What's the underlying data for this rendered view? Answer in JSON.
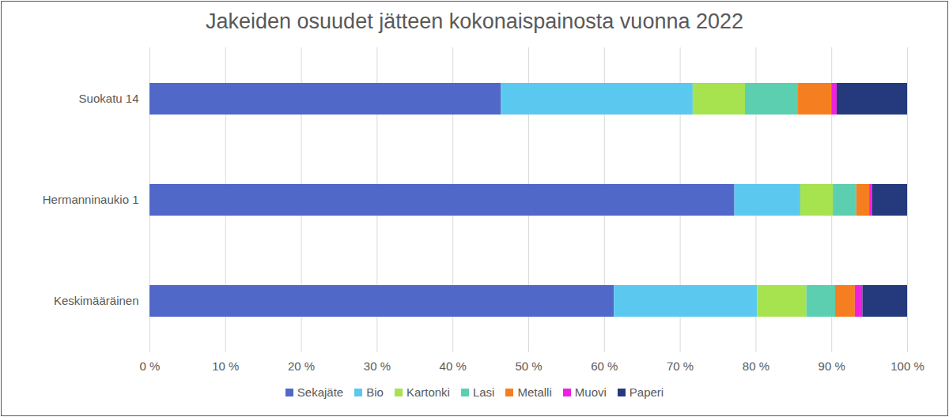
{
  "chart_data": {
    "type": "bar",
    "orientation": "horizontal",
    "stacked": true,
    "title": "Jakeiden osuudet jätteen kokonaispainosta vuonna 2022",
    "categories": [
      "Suokatu 14",
      "Hermanninaukio 1",
      "Keskimääräinen"
    ],
    "series": [
      {
        "name": "Sekajäte",
        "color": "#5068c8",
        "values": [
          46.4,
          77.2,
          61.3
        ]
      },
      {
        "name": "Bio",
        "color": "#5bc8f0",
        "values": [
          25.3,
          8.7,
          18.9
        ]
      },
      {
        "name": "Kartonki",
        "color": "#a6e34e",
        "values": [
          6.9,
          4.3,
          6.5
        ]
      },
      {
        "name": "Lasi",
        "color": "#5ccfb0",
        "values": [
          7.0,
          3.1,
          3.8
        ]
      },
      {
        "name": "Metalli",
        "color": "#f57f20",
        "values": [
          4.4,
          1.7,
          2.6
        ]
      },
      {
        "name": "Muovi",
        "color": "#f020e0",
        "values": [
          0.7,
          0.4,
          1.0
        ]
      },
      {
        "name": "Paperi",
        "color": "#243a7c",
        "values": [
          9.3,
          4.6,
          5.9
        ]
      }
    ],
    "xlim": [
      0,
      100
    ],
    "xticks": [
      {
        "value": 0,
        "label": "0 %"
      },
      {
        "value": 10,
        "label": "10 %"
      },
      {
        "value": 20,
        "label": "20 %"
      },
      {
        "value": 30,
        "label": "30 %"
      },
      {
        "value": 40,
        "label": "40 %"
      },
      {
        "value": 50,
        "label": "50 %"
      },
      {
        "value": 60,
        "label": "60 %"
      },
      {
        "value": 70,
        "label": "70 %"
      },
      {
        "value": 80,
        "label": "80 %"
      },
      {
        "value": 90,
        "label": "90 %"
      },
      {
        "value": 100,
        "label": "100 %"
      }
    ],
    "grid": true,
    "legend": "bottom"
  }
}
